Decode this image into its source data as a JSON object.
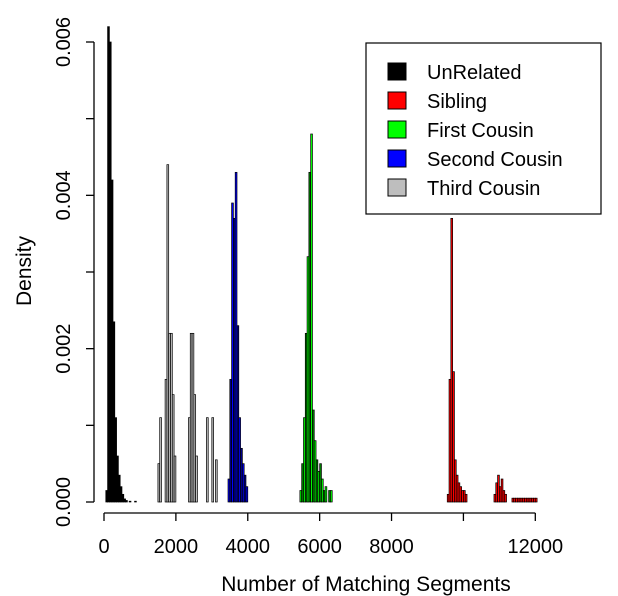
{
  "chart_data": {
    "type": "bar",
    "subtype": "histogram",
    "title": "",
    "xlabel": "Number of Matching Segments",
    "ylabel": "Density",
    "xlim": [
      0,
      13800
    ],
    "ylim": [
      0,
      0.0063
    ],
    "x_ticks": [
      {
        "value": 0,
        "label": "0"
      },
      {
        "value": 2000,
        "label": "2000"
      },
      {
        "value": 4000,
        "label": "4000"
      },
      {
        "value": 6000,
        "label": "6000"
      },
      {
        "value": 8000,
        "label": "8000"
      },
      {
        "value": 10000,
        "label": ""
      },
      {
        "value": 12000,
        "label": "12000"
      }
    ],
    "y_ticks": [
      {
        "value": 0,
        "label": "0.000"
      },
      {
        "value": 0.001,
        "label": ""
      },
      {
        "value": 0.002,
        "label": "0.002"
      },
      {
        "value": 0.003,
        "label": ""
      },
      {
        "value": 0.004,
        "label": "0.004"
      },
      {
        "value": 0.005,
        "label": ""
      },
      {
        "value": 0.006,
        "label": "0.006"
      }
    ],
    "bin_width": 50,
    "legend": {
      "position": "top-right"
    },
    "series": [
      {
        "name": "UnRelated",
        "color": "#000000",
        "bins": [
          [
            50,
            0.00015
          ],
          [
            100,
            0.0062
          ],
          [
            150,
            0.006
          ],
          [
            200,
            0.0042
          ],
          [
            250,
            0.00235
          ],
          [
            300,
            0.0011
          ],
          [
            350,
            0.0006
          ],
          [
            400,
            0.00035
          ],
          [
            450,
            0.0002
          ],
          [
            500,
            0.0001
          ],
          [
            550,
            4e-05
          ],
          [
            600,
            2e-05
          ],
          [
            700,
            1e-05
          ],
          [
            850,
            1e-05
          ]
        ]
      },
      {
        "name": "Sibling",
        "color": "#ff0000",
        "bins": [
          [
            9550,
            0.0001
          ],
          [
            9600,
            0.0016
          ],
          [
            9650,
            0.0037
          ],
          [
            9700,
            0.0017
          ],
          [
            9750,
            0.00055
          ],
          [
            9800,
            0.00035
          ],
          [
            9850,
            0.00025
          ],
          [
            9900,
            0.0002
          ],
          [
            9950,
            0.00015
          ],
          [
            10000,
            0.00015
          ],
          [
            10050,
            0.0001
          ],
          [
            10850,
            0.0001
          ],
          [
            10900,
            0.00025
          ],
          [
            10950,
            0.00035
          ],
          [
            11000,
            0.0002
          ],
          [
            11050,
            0.0003
          ],
          [
            11100,
            0.00015
          ],
          [
            11150,
            0.0001
          ],
          [
            11350,
            5e-05
          ],
          [
            11400,
            5e-05
          ],
          [
            11450,
            5e-05
          ],
          [
            11500,
            5e-05
          ],
          [
            11550,
            5e-05
          ],
          [
            11600,
            5e-05
          ],
          [
            11650,
            5e-05
          ],
          [
            11700,
            5e-05
          ],
          [
            11750,
            5e-05
          ],
          [
            11800,
            5e-05
          ],
          [
            11850,
            5e-05
          ],
          [
            11900,
            5e-05
          ],
          [
            11950,
            5e-05
          ],
          [
            12000,
            5e-05
          ]
        ]
      },
      {
        "name": "First Cousin",
        "color": "#00ff00",
        "dark_color": "#007a00",
        "bins": [
          [
            5450,
            0.00015
          ],
          [
            5500,
            0.0005
          ],
          [
            5550,
            0.0011
          ],
          [
            5600,
            0.0022
          ],
          [
            5650,
            0.0032
          ],
          [
            5700,
            0.0043
          ],
          [
            5750,
            0.0048
          ],
          [
            5800,
            0.0012
          ],
          [
            5850,
            0.0008
          ],
          [
            5900,
            0.00055
          ],
          [
            5950,
            0.0004
          ],
          [
            6000,
            0.0005
          ],
          [
            6050,
            0.0003
          ],
          [
            6100,
            0.00015
          ],
          [
            6150,
            0.0002
          ],
          [
            6250,
            0.00015
          ],
          [
            6300,
            0.00015
          ]
        ]
      },
      {
        "name": "Second Cousin",
        "color": "#0000ff",
        "dark_color": "#00008b",
        "bins": [
          [
            3450,
            0.0003
          ],
          [
            3500,
            0.0016
          ],
          [
            3550,
            0.0039
          ],
          [
            3600,
            0.0037
          ],
          [
            3650,
            0.0043
          ],
          [
            3700,
            0.0023
          ],
          [
            3750,
            0.0011
          ],
          [
            3800,
            0.0007
          ],
          [
            3850,
            0.0005
          ],
          [
            3900,
            0.00035
          ],
          [
            3950,
            0.0002
          ]
        ]
      },
      {
        "name": "Third Cousin",
        "color": "#bebebe",
        "bins": [
          [
            1500,
            0.0005
          ],
          [
            1550,
            0.0011
          ],
          [
            1700,
            0.0016
          ],
          [
            1750,
            0.0044
          ],
          [
            1800,
            0.0022
          ],
          [
            1850,
            0.0022
          ],
          [
            1900,
            0.0014
          ],
          [
            1950,
            0.0006
          ],
          [
            2350,
            0.0011
          ],
          [
            2400,
            0.0022
          ],
          [
            2450,
            0.0022
          ],
          [
            2500,
            0.0014
          ],
          [
            2550,
            0.0006
          ],
          [
            2850,
            0.0011
          ],
          [
            3000,
            0.0011
          ],
          [
            3100,
            0.00055
          ]
        ]
      }
    ]
  }
}
